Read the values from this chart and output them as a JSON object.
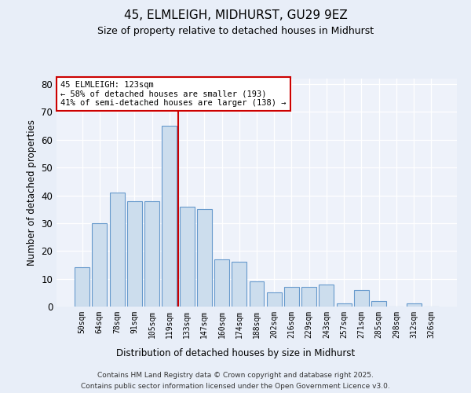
{
  "title1": "45, ELMLEIGH, MIDHURST, GU29 9EZ",
  "title2": "Size of property relative to detached houses in Midhurst",
  "xlabel": "Distribution of detached houses by size in Midhurst",
  "ylabel": "Number of detached properties",
  "categories": [
    "50sqm",
    "64sqm",
    "78sqm",
    "91sqm",
    "105sqm",
    "119sqm",
    "133sqm",
    "147sqm",
    "160sqm",
    "174sqm",
    "188sqm",
    "202sqm",
    "216sqm",
    "229sqm",
    "243sqm",
    "257sqm",
    "271sqm",
    "285sqm",
    "298sqm",
    "312sqm",
    "326sqm"
  ],
  "values": [
    14,
    30,
    41,
    38,
    38,
    65,
    36,
    35,
    17,
    16,
    9,
    5,
    7,
    7,
    8,
    1,
    6,
    2,
    0,
    1,
    0
  ],
  "bar_color": "#ccdded",
  "bar_edge_color": "#6699cc",
  "vline_x": 5.5,
  "vline_color": "#cc0000",
  "annotation_text": "45 ELMLEIGH: 123sqm\n← 58% of detached houses are smaller (193)\n41% of semi-detached houses are larger (138) →",
  "annotation_box_color": "#ffffff",
  "annotation_box_edge": "#cc0000",
  "ylim": [
    0,
    82
  ],
  "yticks": [
    0,
    10,
    20,
    30,
    40,
    50,
    60,
    70,
    80
  ],
  "footer1": "Contains HM Land Registry data © Crown copyright and database right 2025.",
  "footer2": "Contains public sector information licensed under the Open Government Licence v3.0.",
  "bg_color": "#e8eef8",
  "plot_bg_color": "#eef2fa"
}
